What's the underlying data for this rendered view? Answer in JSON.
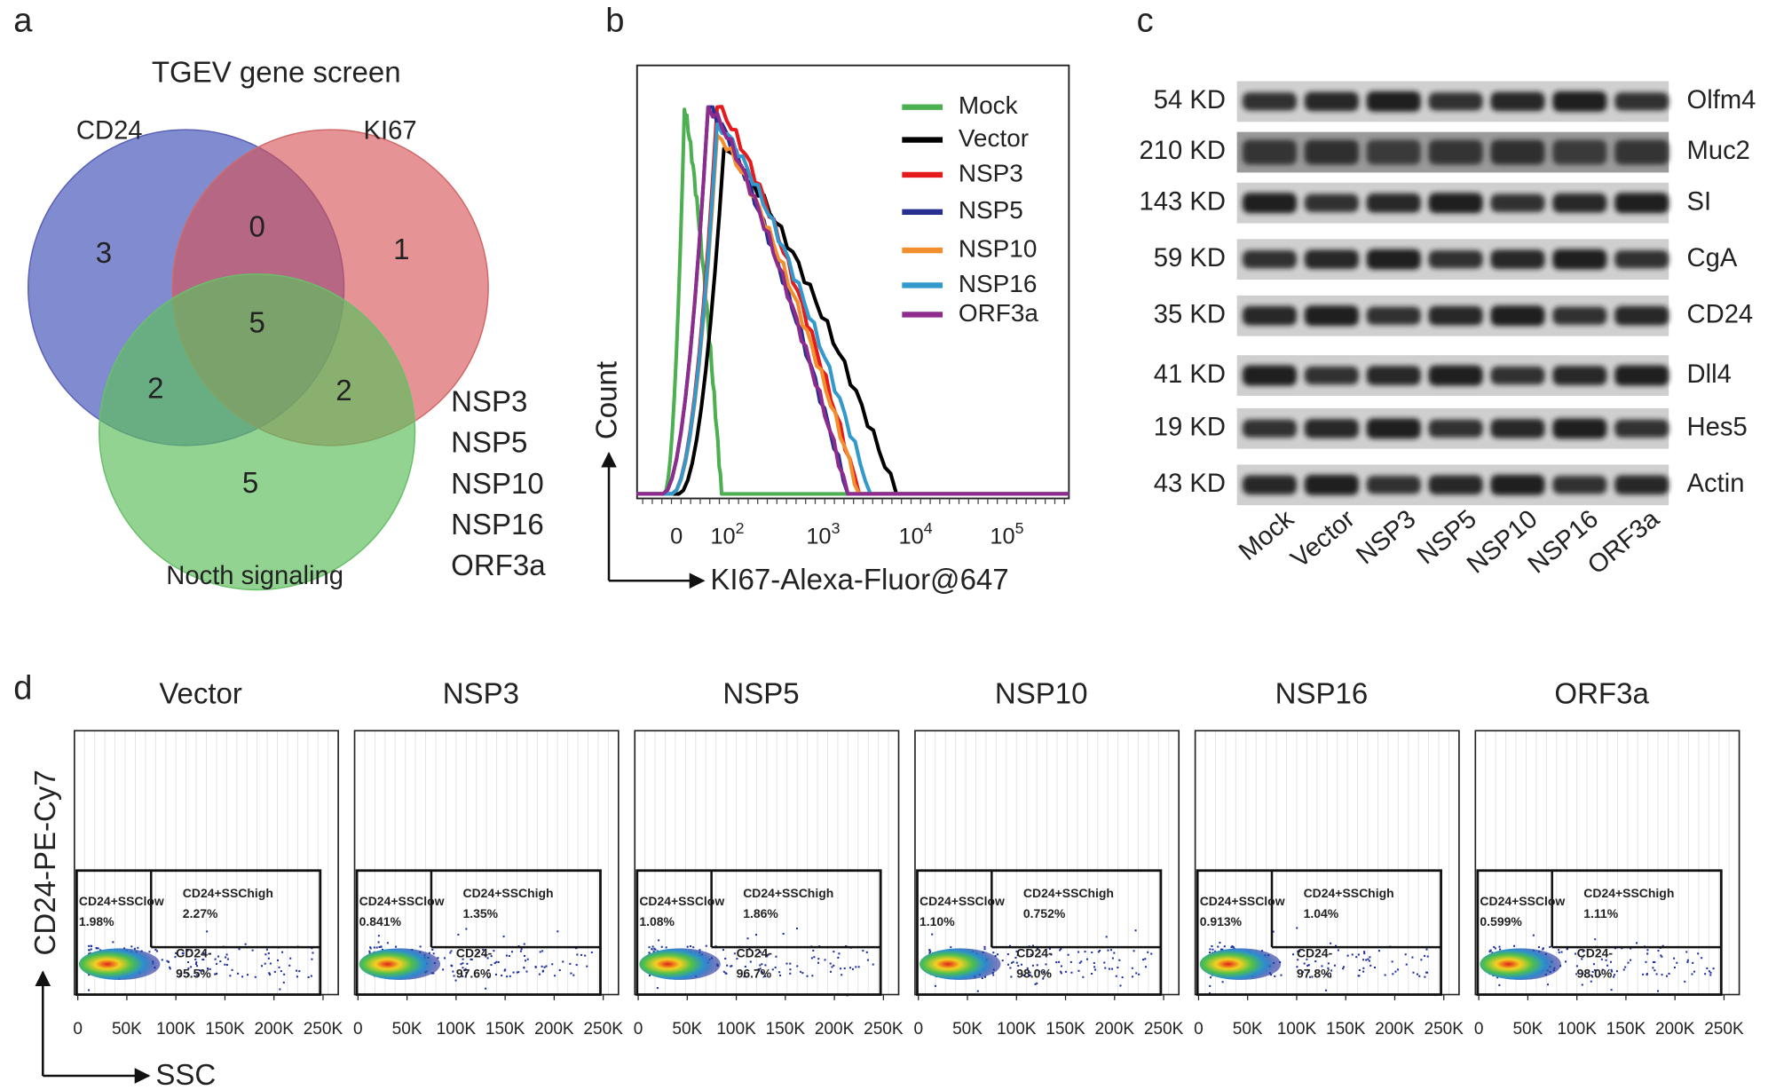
{
  "panels": {
    "a": "a",
    "b": "b",
    "c": "c",
    "d": "d"
  },
  "venn": {
    "title": "TGEV gene screen",
    "sets": [
      "CD24",
      "KI67",
      "Nocth signaling"
    ],
    "regions": {
      "cd24_only": 3,
      "cd24_ki67": 0,
      "ki67_only": 1,
      "all": 5,
      "cd24_notch": 2,
      "ki67_notch": 2,
      "notch_only": 5
    },
    "genes": [
      "NSP3",
      "NSP5",
      "NSP10",
      "NSP16",
      "ORF3a"
    ]
  },
  "histogram": {
    "y_label": "Count",
    "x_label": "KI67-Alexa-Fluor@647",
    "xticks": [
      {
        "base": "0"
      },
      {
        "base": "10",
        "exp": "2"
      },
      {
        "base": "10",
        "exp": "3"
      },
      {
        "base": "10",
        "exp": "4"
      },
      {
        "base": "10",
        "exp": "5"
      }
    ],
    "series": [
      {
        "name": "Mock",
        "color": "#4caf50"
      },
      {
        "name": "Vector",
        "color": "#000000"
      },
      {
        "name": "NSP3",
        "color": "#e41a1c"
      },
      {
        "name": "NSP5",
        "color": "#27308f"
      },
      {
        "name": "NSP10",
        "color": "#f28e2b"
      },
      {
        "name": "NSP16",
        "color": "#3399cc"
      },
      {
        "name": "ORF3a",
        "color": "#8e2c8e"
      }
    ]
  },
  "blot": {
    "sizes": [
      "54 KD",
      "210 KD",
      "143 KD",
      "59 KD",
      "35 KD",
      "41 KD",
      "19 KD",
      "43 KD"
    ],
    "proteins": [
      "Olfm4",
      "Muc2",
      "SI",
      "CgA",
      "CD24",
      "Dll4",
      "Hes5",
      "Actin"
    ],
    "lanes": [
      "Mock",
      "Vector",
      "NSP3",
      "NSP5",
      "NSP10",
      "NSP16",
      "ORF3a"
    ]
  },
  "flow": {
    "y_label": "CD24-PE-Cy7",
    "x_label": "SSC",
    "xticks": [
      "0",
      "50K",
      "100K",
      "150K",
      "200K",
      "250K"
    ],
    "gates": {
      "low": "CD24+SSClow",
      "high": "CD24+SSChigh",
      "neg": "CD24-"
    },
    "samples": [
      {
        "name": "Vector",
        "low": "1.98%",
        "high": "2.27%",
        "neg": "95.5%"
      },
      {
        "name": "NSP3",
        "low": "0.841%",
        "high": "1.35%",
        "neg": "97.6%"
      },
      {
        "name": "NSP5",
        "low": "1.08%",
        "high": "1.86%",
        "neg": "96.7%"
      },
      {
        "name": "NSP10",
        "low": "1.10%",
        "high": "0.752%",
        "neg": "98.0%"
      },
      {
        "name": "NSP16",
        "low": "0.913%",
        "high": "1.04%",
        "neg": "97.8%"
      },
      {
        "name": "ORF3a",
        "low": "0.599%",
        "high": "1.11%",
        "neg": "98.0%"
      }
    ]
  }
}
